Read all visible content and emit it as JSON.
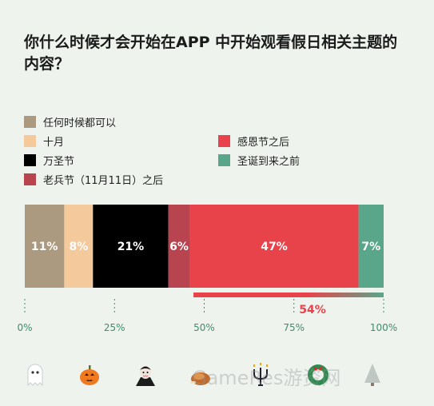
{
  "title": "你什么时候才会开始在APP 中开始观看假日相关主题的内容？",
  "watermark": "GameRes游资网",
  "colors": {
    "anytime": "#ab9a7f",
    "october": "#f4c99b",
    "halloween": "#000000",
    "veterans": "#b8444f",
    "thanksgiving": "#e8434b",
    "christmas": "#5aa68a",
    "axis": "#3d8d6f",
    "callout": "#e8434b"
  },
  "legend": [
    {
      "label": "任何时候都可以",
      "color": "#ab9a7f"
    },
    {
      "label": "十月",
      "color": "#f4c99b"
    },
    {
      "label": "万圣节",
      "color": "#000000"
    },
    {
      "label": "老兵节（11月11日）之后",
      "color": "#b8444f"
    },
    {
      "label": "感恩节之后",
      "color": "#e8434b"
    },
    {
      "label": "圣诞到来之前",
      "color": "#5aa68a"
    }
  ],
  "icons": [
    "ghost-icon",
    "pumpkin-icon",
    "vampire-icon",
    "turkey-icon",
    "candelabra-icon",
    "wreath-icon",
    "tree-icon"
  ],
  "chart_data": {
    "type": "bar",
    "stacked": true,
    "orientation": "horizontal",
    "title": "你什么时候才会开始在APP 中开始观看假日相关主题的内容？",
    "series": [
      {
        "name": "任何时候都可以",
        "value": 11,
        "label": "11%",
        "color": "#ab9a7f"
      },
      {
        "name": "十月",
        "value": 8,
        "label": "8%",
        "color": "#f4c99b"
      },
      {
        "name": "万圣节",
        "value": 21,
        "label": "21%",
        "color": "#000000"
      },
      {
        "name": "老兵节（11月11日）之后",
        "value": 6,
        "label": "6%",
        "color": "#b8444f"
      },
      {
        "name": "感恩节之后",
        "value": 47,
        "label": "47%",
        "color": "#e8434b"
      },
      {
        "name": "圣诞到来之前",
        "value": 7,
        "label": "7%",
        "color": "#5aa68a"
      }
    ],
    "xlim": [
      0,
      100
    ],
    "ticks": [
      {
        "value": 0,
        "label": "0%"
      },
      {
        "value": 25,
        "label": "25%"
      },
      {
        "value": 50,
        "label": "50%"
      },
      {
        "value": 75,
        "label": "75%"
      },
      {
        "value": 100,
        "label": "100%"
      }
    ],
    "callout": {
      "from": 47,
      "to": 100,
      "label": "54%"
    },
    "legend_position": "top"
  }
}
